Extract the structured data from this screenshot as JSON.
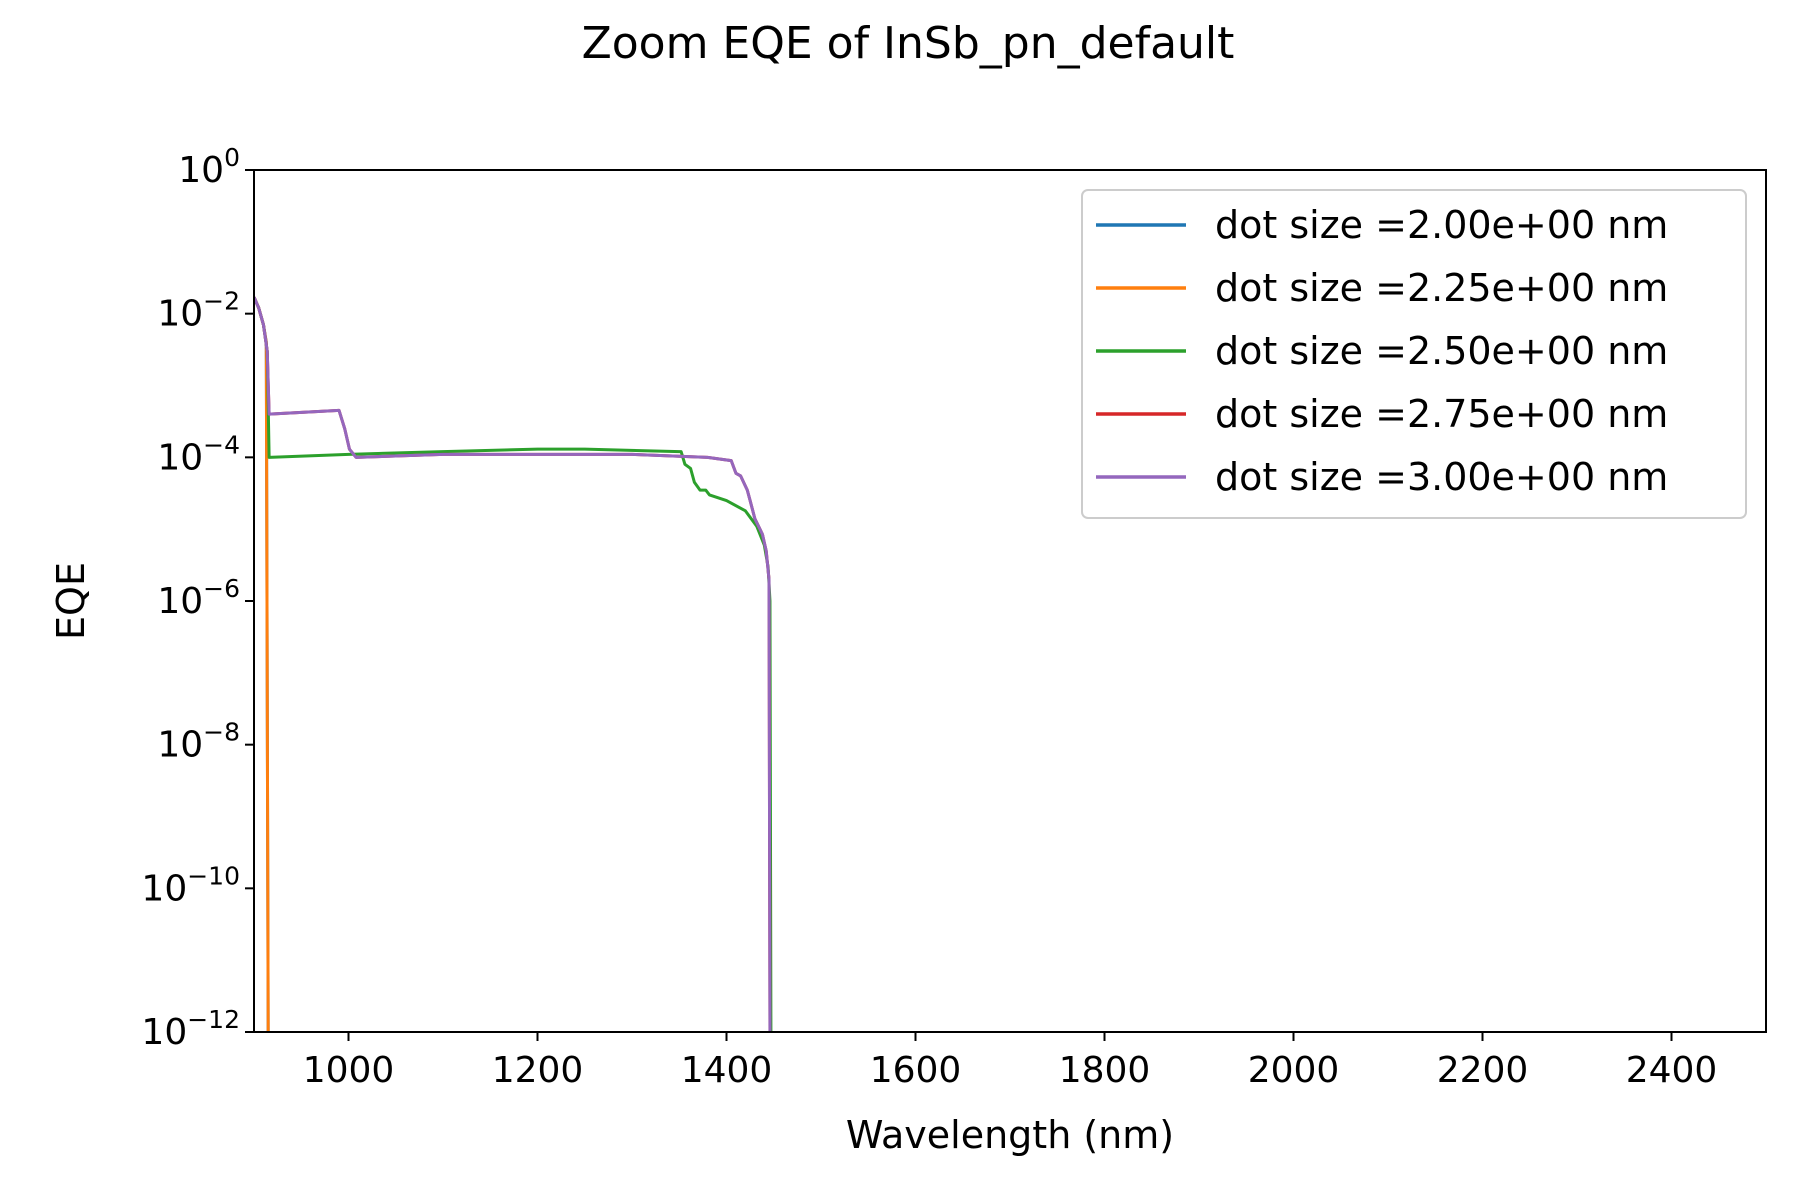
{
  "chart_data": {
    "type": "line",
    "title": "Zoom EQE of InSb_pn_default",
    "xlabel": "Wavelength (nm)",
    "ylabel": "EQE",
    "xlim": [
      900,
      2500
    ],
    "ylim": [
      1e-12,
      1
    ],
    "yscale": "log",
    "grid": false,
    "legend_position": "top-right",
    "x_ticks": [
      1000,
      1200,
      1400,
      1600,
      1800,
      2000,
      2200,
      2400
    ],
    "y_ticks": [
      {
        "base": "10",
        "exp": "0",
        "value": 1
      },
      {
        "base": "10",
        "exp": "−2",
        "value": 0.01
      },
      {
        "base": "10",
        "exp": "−4",
        "value": 0.0001
      },
      {
        "base": "10",
        "exp": "−6",
        "value": 1e-06
      },
      {
        "base": "10",
        "exp": "−8",
        "value": 1e-08
      },
      {
        "base": "10",
        "exp": "−10",
        "value": 1e-10
      },
      {
        "base": "10",
        "exp": "−12",
        "value": 1e-12
      }
    ],
    "series": [
      {
        "name": "dot size =2.00e+00 nm",
        "color": "#1f77b4",
        "points": [
          [
            900,
            0.017
          ],
          [
            905,
            0.012
          ],
          [
            910,
            0.007
          ],
          [
            913,
            0.004
          ],
          [
            915,
            1e-12
          ]
        ]
      },
      {
        "name": "dot size =2.25e+00 nm",
        "color": "#ff7f0e",
        "points": [
          [
            900,
            0.017
          ],
          [
            905,
            0.012
          ],
          [
            910,
            0.007
          ],
          [
            913,
            0.004
          ],
          [
            915,
            1e-12
          ]
        ]
      },
      {
        "name": "dot size =2.50e+00 nm",
        "color": "#2ca02c",
        "points": [
          [
            900,
            0.017
          ],
          [
            905,
            0.012
          ],
          [
            910,
            0.007
          ],
          [
            914,
            0.003
          ],
          [
            916,
            0.0001
          ],
          [
            1000,
            0.00011
          ],
          [
            1100,
            0.00012
          ],
          [
            1200,
            0.00013
          ],
          [
            1250,
            0.00013
          ],
          [
            1350,
            0.00012
          ],
          [
            1352,
            0.00012
          ],
          [
            1356,
            8e-05
          ],
          [
            1362,
            7e-05
          ],
          [
            1366,
            4.5e-05
          ],
          [
            1372,
            3.5e-05
          ],
          [
            1378,
            3.5e-05
          ],
          [
            1382,
            3e-05
          ],
          [
            1400,
            2.5e-05
          ],
          [
            1420,
            1.8e-05
          ],
          [
            1432,
            1.1e-05
          ],
          [
            1440,
            6e-06
          ],
          [
            1444,
            3e-06
          ],
          [
            1446,
            1e-06
          ],
          [
            1447,
            1e-12
          ]
        ]
      },
      {
        "name": "dot size =2.75e+00 nm",
        "color": "#d62728",
        "points": [
          [
            900,
            0.017
          ],
          [
            905,
            0.012
          ],
          [
            910,
            0.007
          ],
          [
            914,
            0.003
          ],
          [
            916,
            0.0004
          ],
          [
            990,
            0.00045
          ],
          [
            996,
            0.00025
          ],
          [
            1001,
            0.00013
          ],
          [
            1008,
            0.0001
          ],
          [
            1100,
            0.00011
          ],
          [
            1200,
            0.00011
          ],
          [
            1300,
            0.00011
          ],
          [
            1380,
            0.0001
          ],
          [
            1405,
            9e-05
          ],
          [
            1410,
            6e-05
          ],
          [
            1415,
            5.5e-05
          ],
          [
            1422,
            3.5e-05
          ],
          [
            1425,
            2.5e-05
          ],
          [
            1430,
            1.4e-05
          ],
          [
            1438,
            8.5e-06
          ],
          [
            1442,
            5e-06
          ],
          [
            1445,
            2e-06
          ],
          [
            1446,
            1e-12
          ]
        ]
      },
      {
        "name": "dot size =3.00e+00 nm",
        "color": "#9467bd",
        "points": [
          [
            900,
            0.017
          ],
          [
            905,
            0.012
          ],
          [
            910,
            0.007
          ],
          [
            914,
            0.003
          ],
          [
            916,
            0.0004
          ],
          [
            990,
            0.00045
          ],
          [
            996,
            0.00025
          ],
          [
            1001,
            0.00013
          ],
          [
            1008,
            0.0001
          ],
          [
            1100,
            0.00011
          ],
          [
            1200,
            0.00011
          ],
          [
            1300,
            0.00011
          ],
          [
            1380,
            0.0001
          ],
          [
            1405,
            9e-05
          ],
          [
            1410,
            6e-05
          ],
          [
            1415,
            5.5e-05
          ],
          [
            1422,
            3.5e-05
          ],
          [
            1425,
            2.5e-05
          ],
          [
            1430,
            1.4e-05
          ],
          [
            1438,
            8.5e-06
          ],
          [
            1442,
            5e-06
          ],
          [
            1445,
            2e-06
          ],
          [
            1446,
            1e-12
          ]
        ]
      }
    ]
  }
}
